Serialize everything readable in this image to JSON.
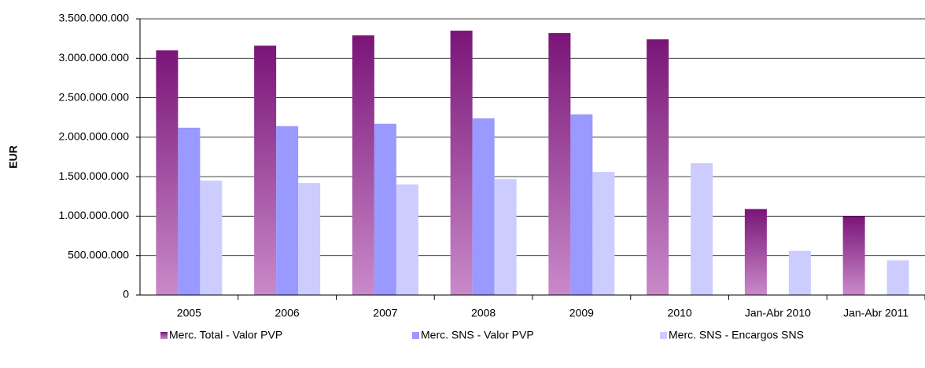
{
  "chart_data": {
    "type": "bar",
    "y_label": "EUR",
    "categories": [
      "2005",
      "2006",
      "2007",
      "2008",
      "2009",
      "2010",
      "Jan-Abr 2010",
      "Jan-Abr 2011"
    ],
    "series": [
      {
        "name": "Merc. Total - Valor PVP",
        "color": "#7f1f7f",
        "values": [
          3100000000,
          3160000000,
          3290000000,
          3350000000,
          3320000000,
          3240000000,
          1090000000,
          1000000000
        ]
      },
      {
        "name": "Merc. SNS - Valor PVP",
        "color": "#9999ff",
        "values": [
          2120000000,
          2140000000,
          2170000000,
          2240000000,
          2290000000,
          null,
          null,
          null
        ]
      },
      {
        "name": "Merc. SNS - Encargos SNS",
        "color": "#ccccff",
        "values": [
          1450000000,
          1420000000,
          1400000000,
          1470000000,
          1560000000,
          1670000000,
          560000000,
          440000000
        ]
      }
    ],
    "ylim": [
      0,
      3500000000
    ],
    "yticks": [
      0,
      {
        "value": 500000000,
        "label": "500.000.000"
      },
      {
        "value": 1000000000,
        "label": "1.000.000.000"
      },
      {
        "value": 1500000000,
        "label": "1.500.000.000"
      },
      {
        "value": 2000000000,
        "label": "2.000.000.000"
      },
      {
        "value": 2500000000,
        "label": "2.500.000.000"
      },
      {
        "value": 3000000000,
        "label": "3.000.000.000"
      },
      {
        "value": 3500000000,
        "label": "3.500.000.000"
      }
    ],
    "grid": true,
    "legend": "bottom"
  }
}
